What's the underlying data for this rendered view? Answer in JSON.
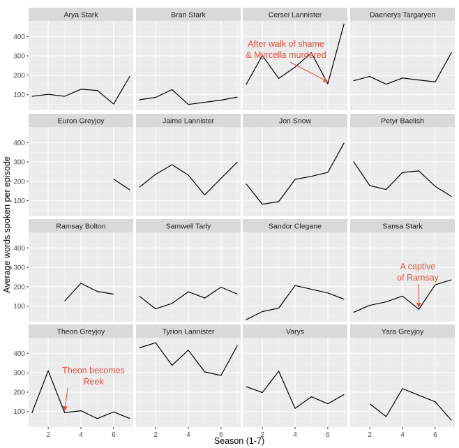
{
  "chart_data": {
    "type": "line",
    "facet_layout": "4x4 grid, shared axes",
    "grid": true,
    "xlabel": "Season (1-7)",
    "ylabel": "Average words spoken per episode",
    "xlim": [
      0.8,
      7.2
    ],
    "ylim": [
      20,
      480
    ],
    "x_ticks": [
      2,
      4,
      6
    ],
    "y_ticks": [
      100,
      200,
      300,
      400
    ],
    "colors": {
      "panel_bg": "#ebebeb",
      "strip_bg": "#d9d9d9",
      "grid_major": "#ffffff",
      "line": "#000000",
      "annotation": "#e0503e"
    },
    "panels": [
      {
        "title": "Arya Stark",
        "x": [
          1,
          2,
          3,
          4,
          5,
          6,
          7
        ],
        "y": [
          92,
          102,
          92,
          128,
          122,
          52,
          196
        ]
      },
      {
        "title": "Bran Stark",
        "x": [
          1,
          2,
          3,
          4,
          6,
          7
        ],
        "y": [
          74,
          86,
          126,
          50,
          72,
          88
        ]
      },
      {
        "title": "Cersei Lannister",
        "x": [
          1,
          2,
          3,
          4,
          5,
          6,
          7
        ],
        "y": [
          152,
          302,
          184,
          242,
          316,
          156,
          466
        ],
        "annotation": {
          "lines": [
            "After walk of shame",
            "& Myrcella murdered"
          ],
          "arrow_to": [
            6,
            156
          ]
        }
      },
      {
        "title": "Daenerys Targaryen",
        "x": [
          1,
          2,
          3,
          4,
          5,
          6,
          7
        ],
        "y": [
          172,
          194,
          154,
          186,
          176,
          166,
          318
        ]
      },
      {
        "title": "Euron Greyjoy",
        "x": [
          6,
          7
        ],
        "y": [
          212,
          156
        ]
      },
      {
        "title": "Jaime Lannister",
        "x": [
          1,
          2,
          3,
          4,
          5,
          6,
          7
        ],
        "y": [
          170,
          236,
          286,
          232,
          130,
          216,
          300
        ]
      },
      {
        "title": "Jon Snow",
        "x": [
          1,
          2,
          3,
          4,
          5,
          6,
          7
        ],
        "y": [
          188,
          82,
          96,
          210,
          226,
          246,
          398
        ]
      },
      {
        "title": "Petyr Baelish",
        "x": [
          1,
          2,
          3,
          4,
          5,
          6,
          7
        ],
        "y": [
          302,
          178,
          158,
          246,
          254,
          174,
          122
        ]
      },
      {
        "title": "Ramsay Bolton",
        "x": [
          3,
          4,
          5,
          6
        ],
        "y": [
          126,
          218,
          176,
          162
        ]
      },
      {
        "title": "Samwell Tarly",
        "x": [
          1,
          2,
          3,
          4,
          5,
          6,
          7
        ],
        "y": [
          152,
          86,
          114,
          174,
          142,
          198,
          162
        ]
      },
      {
        "title": "Sandor Clegane",
        "x": [
          1,
          2,
          3,
          4,
          6,
          7
        ],
        "y": [
          30,
          72,
          90,
          206,
          168,
          136
        ]
      },
      {
        "title": "Sansa Stark",
        "x": [
          1,
          2,
          3,
          4,
          5,
          6,
          7
        ],
        "y": [
          68,
          104,
          122,
          152,
          84,
          210,
          236
        ],
        "annotation": {
          "lines": [
            "A captive",
            "of Ramsay"
          ],
          "arrow_to": [
            5,
            84
          ]
        }
      },
      {
        "title": "Theon Greyjoy",
        "x": [
          1,
          2,
          3,
          4,
          5,
          6,
          7
        ],
        "y": [
          92,
          310,
          94,
          104,
          64,
          98,
          64
        ],
        "annotation": {
          "lines": [
            "Theon becomes",
            "Reek"
          ],
          "arrow_to": [
            3,
            94
          ]
        }
      },
      {
        "title": "Tyrion Lannister",
        "x": [
          1,
          2,
          3,
          4,
          5,
          6,
          7
        ],
        "y": [
          428,
          454,
          338,
          416,
          304,
          286,
          440
        ]
      },
      {
        "title": "Varys",
        "x": [
          1,
          2,
          3,
          4,
          5,
          6,
          7
        ],
        "y": [
          228,
          198,
          308,
          116,
          176,
          140,
          188
        ]
      },
      {
        "title": "Yara Greyjoy",
        "x": [
          2,
          3,
          4,
          6,
          7
        ],
        "y": [
          140,
          74,
          218,
          150,
          54
        ]
      }
    ]
  }
}
